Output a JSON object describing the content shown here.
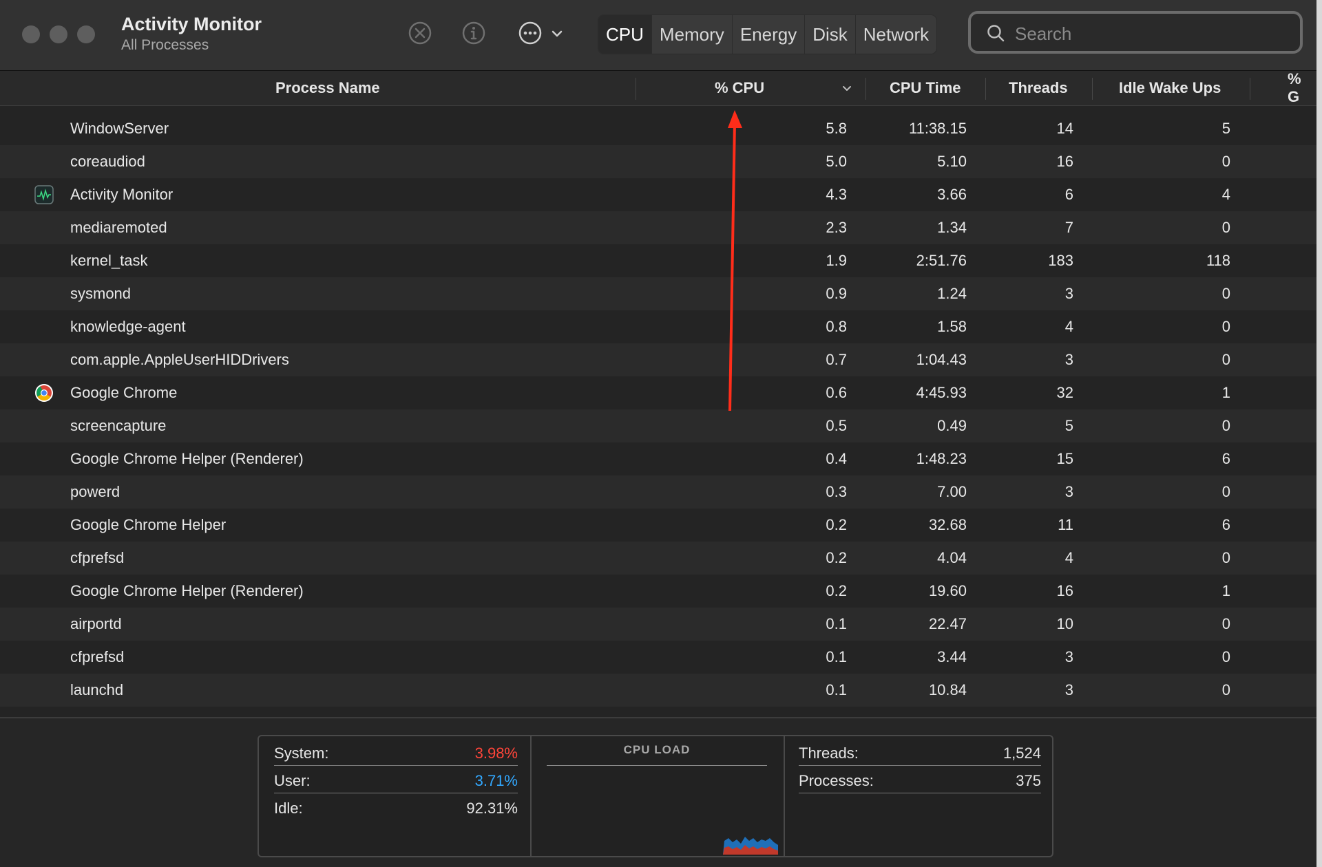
{
  "window": {
    "title": "Activity Monitor",
    "subtitle": "All Processes"
  },
  "toolbar": {
    "stop_icon": "stop-process-icon",
    "info_icon": "info-icon",
    "more_icon": "ellipsis-circle-icon",
    "tabs": [
      {
        "label": "CPU",
        "active": true
      },
      {
        "label": "Memory",
        "active": false
      },
      {
        "label": "Energy",
        "active": false
      },
      {
        "label": "Disk",
        "active": false
      },
      {
        "label": "Network",
        "active": false
      }
    ]
  },
  "search": {
    "placeholder": "Search",
    "value": ""
  },
  "columns": {
    "name": "Process Name",
    "cpu": "% CPU",
    "cpu_time": "CPU Time",
    "threads": "Threads",
    "idle": "Idle Wake Ups",
    "gpu": "% G"
  },
  "processes": [
    {
      "name": "WindowServer",
      "cpu": "5.8",
      "time": "11:38.15",
      "threads": "14",
      "idle": "5",
      "icon": ""
    },
    {
      "name": "coreaudiod",
      "cpu": "5.0",
      "time": "5.10",
      "threads": "16",
      "idle": "0",
      "icon": ""
    },
    {
      "name": "Activity Monitor",
      "cpu": "4.3",
      "time": "3.66",
      "threads": "6",
      "idle": "4",
      "icon": "activity-monitor-icon"
    },
    {
      "name": "mediaremoted",
      "cpu": "2.3",
      "time": "1.34",
      "threads": "7",
      "idle": "0",
      "icon": ""
    },
    {
      "name": "kernel_task",
      "cpu": "1.9",
      "time": "2:51.76",
      "threads": "183",
      "idle": "118",
      "icon": ""
    },
    {
      "name": "sysmond",
      "cpu": "0.9",
      "time": "1.24",
      "threads": "3",
      "idle": "0",
      "icon": ""
    },
    {
      "name": "knowledge-agent",
      "cpu": "0.8",
      "time": "1.58",
      "threads": "4",
      "idle": "0",
      "icon": ""
    },
    {
      "name": "com.apple.AppleUserHIDDrivers",
      "cpu": "0.7",
      "time": "1:04.43",
      "threads": "3",
      "idle": "0",
      "icon": ""
    },
    {
      "name": "Google Chrome",
      "cpu": "0.6",
      "time": "4:45.93",
      "threads": "32",
      "idle": "1",
      "icon": "chrome-icon"
    },
    {
      "name": "screencapture",
      "cpu": "0.5",
      "time": "0.49",
      "threads": "5",
      "idle": "0",
      "icon": ""
    },
    {
      "name": "Google Chrome Helper (Renderer)",
      "cpu": "0.4",
      "time": "1:48.23",
      "threads": "15",
      "idle": "6",
      "icon": ""
    },
    {
      "name": "powerd",
      "cpu": "0.3",
      "time": "7.00",
      "threads": "3",
      "idle": "0",
      "icon": ""
    },
    {
      "name": "Google Chrome Helper",
      "cpu": "0.2",
      "time": "32.68",
      "threads": "11",
      "idle": "6",
      "icon": ""
    },
    {
      "name": "cfprefsd",
      "cpu": "0.2",
      "time": "4.04",
      "threads": "4",
      "idle": "0",
      "icon": ""
    },
    {
      "name": "Google Chrome Helper (Renderer)",
      "cpu": "0.2",
      "time": "19.60",
      "threads": "16",
      "idle": "1",
      "icon": ""
    },
    {
      "name": "airportd",
      "cpu": "0.1",
      "time": "22.47",
      "threads": "10",
      "idle": "0",
      "icon": ""
    },
    {
      "name": "cfprefsd",
      "cpu": "0.1",
      "time": "3.44",
      "threads": "3",
      "idle": "0",
      "icon": ""
    },
    {
      "name": "launchd",
      "cpu": "0.1",
      "time": "10.84",
      "threads": "3",
      "idle": "0",
      "icon": ""
    }
  ],
  "summary": {
    "system_label": "System:",
    "system_value": "3.98%",
    "user_label": "User:",
    "user_value": "3.71%",
    "idle_label": "Idle:",
    "idle_value": "92.31%",
    "cpu_load_title": "CPU LOAD",
    "threads_label": "Threads:",
    "threads_value": "1,524",
    "processes_label": "Processes:",
    "processes_value": "375"
  },
  "colors": {
    "system": "#ff453a",
    "user": "#32a8ff",
    "annotation_arrow": "#ff2d1a"
  }
}
